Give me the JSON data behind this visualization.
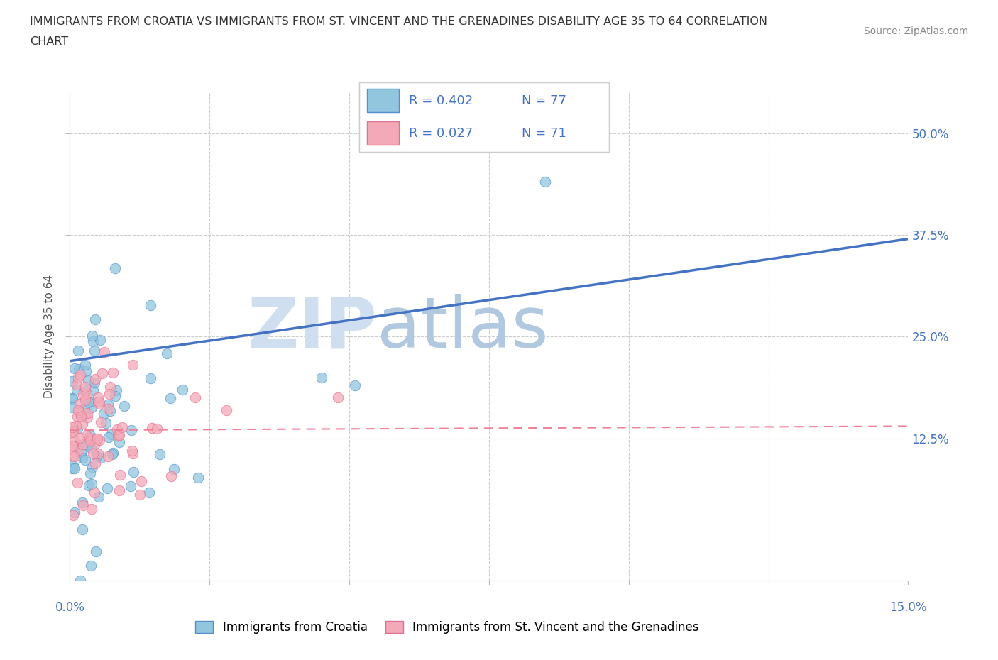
{
  "title_line1": "IMMIGRANTS FROM CROATIA VS IMMIGRANTS FROM ST. VINCENT AND THE GRENADINES DISABILITY AGE 35 TO 64 CORRELATION",
  "title_line2": "CHART",
  "source": "Source: ZipAtlas.com",
  "ylabel": "Disability Age 35 to 64",
  "color_croatia": "#92C5DE",
  "color_stv": "#F4A9B8",
  "color_blue_text": "#4472C4",
  "color_trendline_croatia": "#4472C4",
  "color_trendline_stv": "#F08098",
  "color_stv_edge": "#E07090",
  "color_croatia_edge": "#5590CC",
  "background_color": "#FFFFFF",
  "grid_color": "#CCCCCC",
  "trendline_cro_x0": 0.0,
  "trendline_cro_y0": 22.0,
  "trendline_cro_x1": 15.0,
  "trendline_cro_y1": 37.0,
  "trendline_stv_x0": 0.0,
  "trendline_stv_y0": 13.5,
  "trendline_stv_x1": 15.0,
  "trendline_stv_y1": 14.0,
  "xlim": [
    0.0,
    15.0
  ],
  "ylim": [
    -5.0,
    55.0
  ],
  "ytick_vals": [
    12.5,
    25.0,
    37.5,
    50.0
  ],
  "ytick_labels": [
    "12.5%",
    "25.0%",
    "37.5%",
    "50.0%"
  ],
  "watermark_zip_color": "#D0DFF0",
  "watermark_atlas_color": "#B0C8E0",
  "legend_r1": "R = 0.402",
  "legend_n1": "N = 77",
  "legend_r2": "R = 0.027",
  "legend_n2": "N = 71"
}
